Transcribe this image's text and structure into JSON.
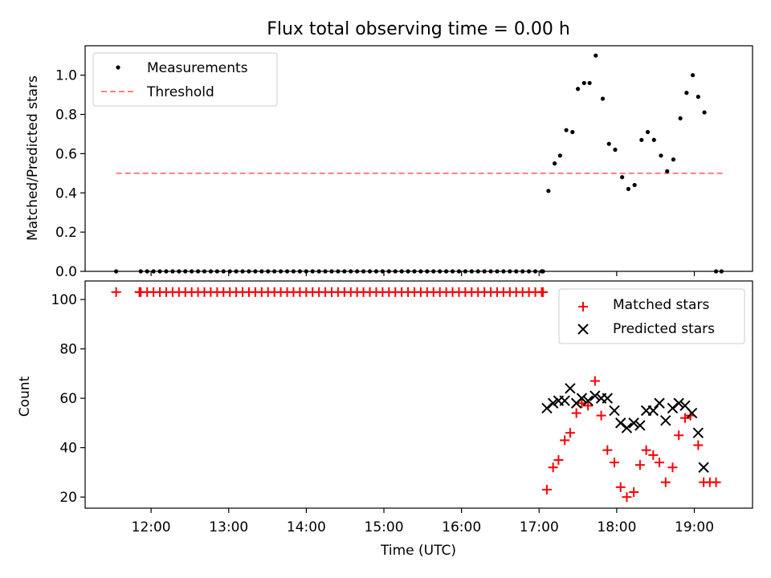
{
  "chart_data": [
    {
      "type": "scatter",
      "title": "Flux total observing time = 0.00 h",
      "xlabel": "",
      "ylabel": "Matched/Predicted stars",
      "xlim": [
        11.15,
        19.75
      ],
      "ylim": [
        0,
        1.15
      ],
      "yticks": [
        "0.0",
        "0.2",
        "0.4",
        "0.6",
        "0.8",
        "1.0"
      ],
      "ytick_values": [
        0,
        0.2,
        0.4,
        0.6,
        0.8,
        1.0
      ],
      "legend": {
        "placement": "top-left",
        "entries": [
          "Measurements",
          "Threshold"
        ]
      },
      "colors": {
        "measurements": "#000000",
        "threshold": "#ff7f7f"
      },
      "threshold": {
        "name": "Threshold",
        "value": 0.5,
        "x_range": [
          11.55,
          19.4
        ]
      },
      "series": [
        {
          "name": "Measurements",
          "zero_run": {
            "value": 0,
            "x_start": 11.867,
            "x_end": 17.033,
            "count": 64
          },
          "points": [
            [
              11.55,
              0
            ],
            [
              17.05,
              0
            ],
            [
              17.12,
              0.41
            ],
            [
              17.2,
              0.55
            ],
            [
              17.27,
              0.59
            ],
            [
              17.35,
              0.72
            ],
            [
              17.43,
              0.71
            ],
            [
              17.5,
              0.93
            ],
            [
              17.58,
              0.96
            ],
            [
              17.65,
              0.96
            ],
            [
              17.73,
              1.1
            ],
            [
              17.82,
              0.88
            ],
            [
              17.9,
              0.65
            ],
            [
              17.98,
              0.62
            ],
            [
              18.07,
              0.48
            ],
            [
              18.15,
              0.42
            ],
            [
              18.23,
              0.44
            ],
            [
              18.32,
              0.67
            ],
            [
              18.4,
              0.71
            ],
            [
              18.48,
              0.67
            ],
            [
              18.57,
              0.59
            ],
            [
              18.65,
              0.51
            ],
            [
              18.73,
              0.57
            ],
            [
              18.82,
              0.78
            ],
            [
              18.9,
              0.91
            ],
            [
              18.98,
              1.0
            ],
            [
              19.05,
              0.89
            ],
            [
              19.13,
              0.81
            ],
            [
              19.28,
              0
            ],
            [
              19.35,
              0
            ]
          ]
        }
      ]
    },
    {
      "type": "scatter",
      "title": "",
      "xlabel": "Time (UTC)",
      "ylabel": "Count",
      "xlim": [
        11.15,
        19.75
      ],
      "ylim": [
        15.5,
        107.5
      ],
      "yticks": [
        "20",
        "40",
        "60",
        "80",
        "100"
      ],
      "ytick_values": [
        20,
        40,
        60,
        80,
        100
      ],
      "xticks": [
        "12:00",
        "13:00",
        "14:00",
        "15:00",
        "16:00",
        "17:00",
        "18:00",
        "19:00"
      ],
      "xtick_values": [
        12,
        13,
        14,
        15,
        16,
        17,
        18,
        19
      ],
      "legend": {
        "placement": "top-right",
        "entries": [
          "Matched stars",
          "Predicted stars"
        ]
      },
      "colors": {
        "matched": "#ff0000",
        "predicted": "#000000"
      },
      "series": [
        {
          "name": "Matched stars",
          "constant_run": {
            "value": 103,
            "x_start": 11.867,
            "x_end": 17.033,
            "count": 64
          },
          "points": [
            [
              11.55,
              103
            ],
            [
              11.85,
              103
            ],
            [
              17.05,
              103
            ],
            [
              17.1,
              23
            ],
            [
              17.18,
              32
            ],
            [
              17.25,
              35
            ],
            [
              17.33,
              43
            ],
            [
              17.4,
              46
            ],
            [
              17.48,
              54
            ],
            [
              17.55,
              58
            ],
            [
              17.63,
              57
            ],
            [
              17.72,
              67
            ],
            [
              17.8,
              53
            ],
            [
              17.88,
              39
            ],
            [
              17.97,
              34
            ],
            [
              18.05,
              24
            ],
            [
              18.13,
              20
            ],
            [
              18.22,
              22
            ],
            [
              18.3,
              33
            ],
            [
              18.38,
              39
            ],
            [
              18.47,
              37
            ],
            [
              18.55,
              34
            ],
            [
              18.63,
              26
            ],
            [
              18.72,
              32
            ],
            [
              18.8,
              45
            ],
            [
              18.88,
              52
            ],
            [
              18.95,
              53
            ],
            [
              19.05,
              41
            ],
            [
              19.12,
              26
            ],
            [
              19.2,
              26
            ],
            [
              19.28,
              26
            ]
          ]
        },
        {
          "name": "Predicted stars",
          "points": [
            [
              17.1,
              56
            ],
            [
              17.18,
              58
            ],
            [
              17.25,
              59
            ],
            [
              17.33,
              59
            ],
            [
              17.4,
              64
            ],
            [
              17.48,
              58
            ],
            [
              17.55,
              60
            ],
            [
              17.63,
              59
            ],
            [
              17.72,
              61
            ],
            [
              17.8,
              60
            ],
            [
              17.88,
              60
            ],
            [
              17.97,
              55
            ],
            [
              18.05,
              50
            ],
            [
              18.13,
              48
            ],
            [
              18.22,
              50
            ],
            [
              18.3,
              49
            ],
            [
              18.38,
              55
            ],
            [
              18.47,
              55
            ],
            [
              18.55,
              58
            ],
            [
              18.63,
              51
            ],
            [
              18.72,
              56
            ],
            [
              18.8,
              58
            ],
            [
              18.88,
              57
            ],
            [
              18.97,
              54
            ],
            [
              19.05,
              46
            ],
            [
              19.12,
              32
            ]
          ]
        }
      ]
    }
  ]
}
